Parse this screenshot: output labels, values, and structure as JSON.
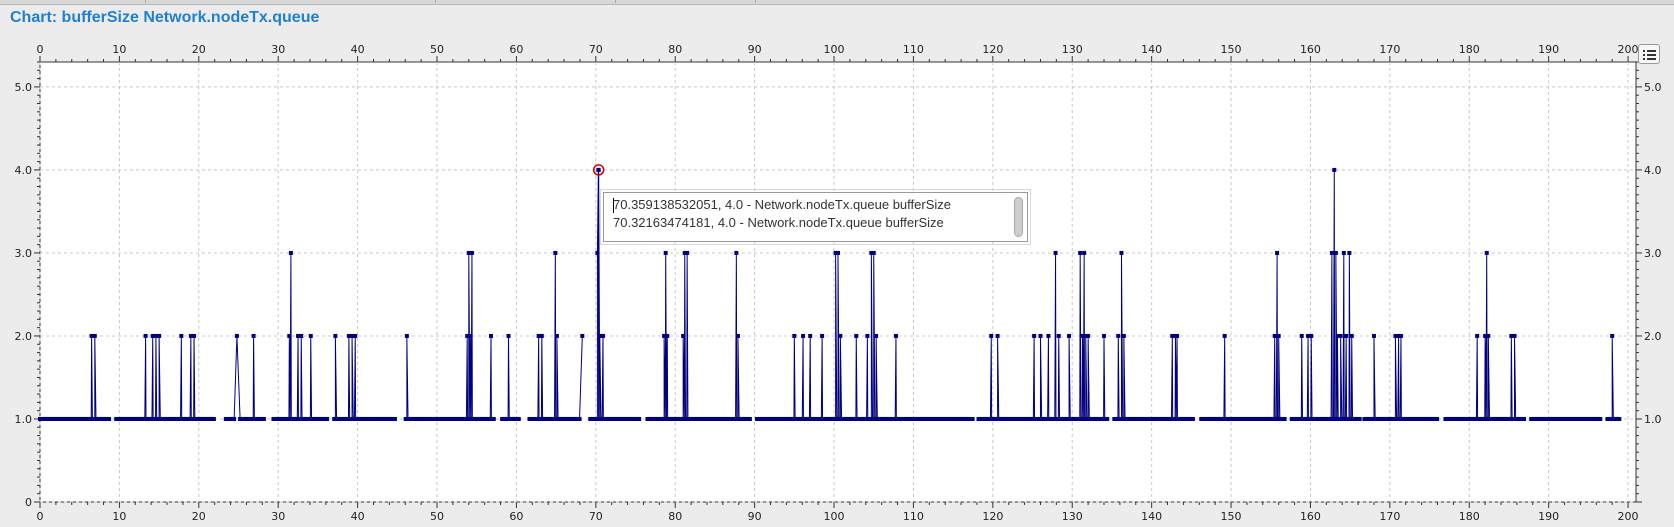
{
  "title": "Chart: bufferSize Network.nodeTx.queue",
  "tooltip": {
    "lines": [
      "70.359138532051, 4.0 - Network.nodeTx.queue bufferSize",
      "70.32163474181, 4.0 - Network.nodeTx.queue bufferSize"
    ]
  },
  "colors": {
    "series": "#000080",
    "highlight": "#d40000",
    "grid": "#c8c8c8",
    "title": "#1f7fd4"
  },
  "chart_data": {
    "type": "line",
    "title": "Chart: bufferSize Network.nodeTx.queue",
    "xlabel": "",
    "ylabel": "",
    "xlim": [
      0,
      201
    ],
    "ylim": [
      0,
      5.3
    ],
    "x_ticks": [
      0,
      10,
      20,
      30,
      40,
      50,
      60,
      70,
      80,
      90,
      100,
      110,
      120,
      130,
      140,
      150,
      160,
      170,
      180,
      190,
      200
    ],
    "x_tick_labels": [
      "0",
      "10",
      "20",
      "30",
      "40",
      "50",
      "60",
      "70",
      "80",
      "90",
      "100",
      "110",
      "120",
      "130",
      "140",
      "150",
      "160",
      "170",
      "180",
      "190",
      "200"
    ],
    "y_ticks": [
      0,
      1,
      2,
      3,
      4,
      5
    ],
    "y_tick_labels": [
      "0",
      "1.0",
      "2.0",
      "3.0",
      "4.0",
      "5.0"
    ],
    "grid": true,
    "series": [
      {
        "step": 0.15,
        "x_start": 0,
        "x_end": 199,
        "baseline": 1,
        "gaps": [
          [
            8.8,
            9.6
          ],
          [
            22.0,
            23.4
          ],
          [
            24.5,
            25.2
          ],
          [
            28.2,
            29.4
          ],
          [
            36.2,
            37.0
          ],
          [
            44.8,
            46.0
          ],
          [
            57.2,
            58.2
          ],
          [
            60.4,
            61.6
          ],
          [
            68.0,
            69.2
          ],
          [
            75.5,
            76.4
          ],
          [
            89.5,
            90.2
          ],
          [
            117.5,
            118.2
          ],
          [
            134.4,
            135.3
          ],
          [
            145.2,
            146.2
          ],
          [
            156.8,
            157.6
          ],
          [
            166.2,
            166.8
          ],
          [
            176.0,
            177.0
          ],
          [
            187.0,
            187.8
          ],
          [
            196.6,
            197.4
          ]
        ],
        "spikes": [
          [
            6.5,
            2
          ],
          [
            6.9,
            2
          ],
          [
            13.3,
            2
          ],
          [
            14.2,
            2
          ],
          [
            14.6,
            2
          ],
          [
            15.0,
            2
          ],
          [
            17.8,
            2
          ],
          [
            19.0,
            2
          ],
          [
            19.4,
            2
          ],
          [
            24.8,
            2
          ],
          [
            26.9,
            2
          ],
          [
            31.4,
            2
          ],
          [
            31.6,
            3
          ],
          [
            32.5,
            2
          ],
          [
            32.9,
            2
          ],
          [
            34.1,
            2
          ],
          [
            37.2,
            2
          ],
          [
            38.9,
            2
          ],
          [
            39.3,
            2
          ],
          [
            39.7,
            2
          ],
          [
            46.2,
            2
          ],
          [
            53.8,
            2
          ],
          [
            54.0,
            3
          ],
          [
            54.2,
            2
          ],
          [
            54.4,
            3
          ],
          [
            56.8,
            2
          ],
          [
            59.0,
            2
          ],
          [
            62.8,
            2
          ],
          [
            63.2,
            2
          ],
          [
            64.9,
            3
          ],
          [
            65.1,
            2
          ],
          [
            68.3,
            2
          ],
          [
            70.2,
            3
          ],
          [
            70.32163474181,
            4
          ],
          [
            70.359138532051,
            4
          ],
          [
            70.5,
            2
          ],
          [
            70.9,
            2
          ],
          [
            78.6,
            2
          ],
          [
            78.8,
            3
          ],
          [
            79.0,
            2
          ],
          [
            81.0,
            2
          ],
          [
            81.2,
            3
          ],
          [
            81.5,
            3
          ],
          [
            87.7,
            3
          ],
          [
            87.9,
            2
          ],
          [
            95.0,
            2
          ],
          [
            96.1,
            2
          ],
          [
            97.0,
            2
          ],
          [
            98.5,
            2
          ],
          [
            100.2,
            3
          ],
          [
            100.5,
            3
          ],
          [
            100.8,
            2
          ],
          [
            102.8,
            2
          ],
          [
            104.2,
            2
          ],
          [
            104.7,
            3
          ],
          [
            105.0,
            3
          ],
          [
            105.3,
            2
          ],
          [
            107.8,
            2
          ],
          [
            119.8,
            2
          ],
          [
            120.6,
            2
          ],
          [
            125.2,
            2
          ],
          [
            126.0,
            2
          ],
          [
            127.0,
            2
          ],
          [
            127.9,
            3
          ],
          [
            128.3,
            2
          ],
          [
            129.6,
            2
          ],
          [
            131.0,
            3
          ],
          [
            131.3,
            2
          ],
          [
            131.5,
            3
          ],
          [
            131.7,
            2
          ],
          [
            132.0,
            2
          ],
          [
            134.0,
            2
          ],
          [
            135.8,
            2
          ],
          [
            136.2,
            3
          ],
          [
            136.5,
            2
          ],
          [
            142.6,
            2
          ],
          [
            143.0,
            2
          ],
          [
            143.2,
            2
          ],
          [
            149.2,
            2
          ],
          [
            155.5,
            2
          ],
          [
            155.8,
            3
          ],
          [
            156.0,
            2
          ],
          [
            158.9,
            2
          ],
          [
            159.7,
            2
          ],
          [
            160.1,
            2
          ],
          [
            162.7,
            3
          ],
          [
            163.0,
            4
          ],
          [
            163.2,
            3
          ],
          [
            163.4,
            2
          ],
          [
            163.8,
            2
          ],
          [
            164.2,
            3
          ],
          [
            164.5,
            2
          ],
          [
            164.9,
            3
          ],
          [
            165.2,
            2
          ],
          [
            168.0,
            2
          ],
          [
            170.7,
            2
          ],
          [
            171.1,
            2
          ],
          [
            171.4,
            2
          ],
          [
            181.0,
            2
          ],
          [
            182.0,
            2
          ],
          [
            182.2,
            3
          ],
          [
            182.4,
            2
          ],
          [
            185.3,
            2
          ],
          [
            185.7,
            2
          ],
          [
            198.0,
            2
          ]
        ]
      }
    ],
    "highlight_point": [
      70.359138532051,
      4.0
    ]
  }
}
